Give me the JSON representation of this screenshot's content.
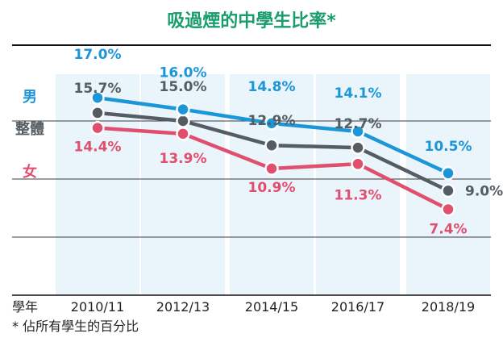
{
  "chart_data": {
    "type": "line",
    "title": "吸過煙的中學生比率*",
    "xlabel": "學年",
    "footnote": "* 佔所有學生的百分比",
    "categories": [
      "2010/11",
      "2012/13",
      "2014/15",
      "2016/17",
      "2018/19"
    ],
    "ylim": [
      0,
      20
    ],
    "grid": true,
    "legend": "left",
    "series": [
      {
        "name": "男",
        "color": "#1b96d8",
        "values": [
          17.0,
          16.0,
          14.8,
          14.1,
          10.5
        ],
        "labels": [
          "17.0%",
          "16.0%",
          "14.8%",
          "14.1%",
          "10.5%"
        ]
      },
      {
        "name": "整體",
        "color": "#555c63",
        "values": [
          15.7,
          15.0,
          12.9,
          12.7,
          9.0
        ],
        "labels": [
          "15.7%",
          "15.0%",
          "12.9%",
          "12.7%",
          "9.0%"
        ]
      },
      {
        "name": "女",
        "color": "#e0506e",
        "values": [
          14.4,
          13.9,
          10.9,
          11.3,
          7.4
        ],
        "labels": [
          "14.4%",
          "13.9%",
          "10.9%",
          "11.3%",
          "7.4%"
        ]
      }
    ]
  }
}
